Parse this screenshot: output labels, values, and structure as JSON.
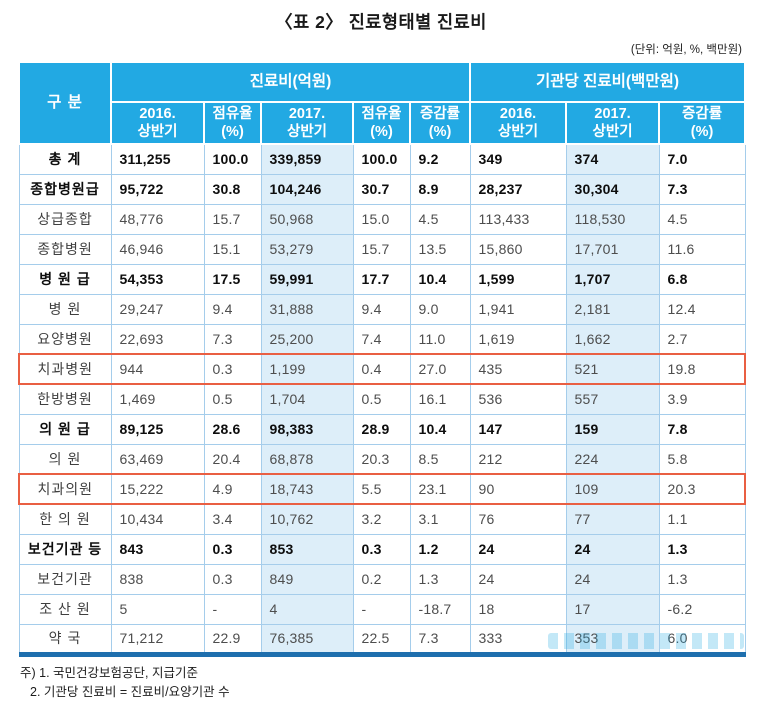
{
  "title": "〈표 2〉 진료형태별 진료비",
  "units_note": "(단위: 억원, %, 백만원)",
  "colors": {
    "header_blue": "#22a9e3",
    "column_highlight": "#ddeef9",
    "row_border": "#a5cdeb",
    "bottom_bar": "#1e6fae",
    "highlight_box_red": "#e95f43"
  },
  "table": {
    "corner_header": "구 분",
    "group_headers": [
      {
        "label": "진료비(억원)",
        "colspan": 5
      },
      {
        "label": "기관당 진료비(백만원)",
        "colspan": 3
      }
    ],
    "sub_headers": [
      "2016.\n상반기",
      "점유율\n(%)",
      "2017.\n상반기",
      "점유율\n(%)",
      "증감률\n(%)",
      "2016.\n상반기",
      "2017.\n상반기",
      "증감률\n(%)"
    ],
    "highlighted_value_columns": [
      2,
      6
    ],
    "rows": [
      {
        "label": "총 계",
        "values": [
          "311,255",
          "100.0",
          "339,859",
          "100.0",
          "9.2",
          "349",
          "374",
          "7.0"
        ],
        "bold": true,
        "sep": "solid",
        "boxed": false
      },
      {
        "label": "종합병원급",
        "values": [
          "95,722",
          "30.8",
          "104,246",
          "30.7",
          "8.9",
          "28,237",
          "30,304",
          "7.3"
        ],
        "bold": true,
        "sep": "solid",
        "boxed": false
      },
      {
        "label": "상급종합",
        "values": [
          "48,776",
          "15.7",
          "50,968",
          "15.0",
          "4.5",
          "113,433",
          "118,530",
          "4.5"
        ],
        "bold": false,
        "sep": "solid",
        "boxed": false
      },
      {
        "label": "종합병원",
        "values": [
          "46,946",
          "15.1",
          "53,279",
          "15.7",
          "13.5",
          "15,860",
          "17,701",
          "11.6"
        ],
        "bold": false,
        "sep": "dotted",
        "boxed": false
      },
      {
        "label": "병 원 급",
        "values": [
          "54,353",
          "17.5",
          "59,991",
          "17.7",
          "10.4",
          "1,599",
          "1,707",
          "6.8"
        ],
        "bold": true,
        "sep": "solid",
        "boxed": false
      },
      {
        "label": "병 원",
        "values": [
          "29,247",
          "9.4",
          "31,888",
          "9.4",
          "9.0",
          "1,941",
          "2,181",
          "12.4"
        ],
        "bold": false,
        "sep": "solid",
        "boxed": false
      },
      {
        "label": "요양병원",
        "values": [
          "22,693",
          "7.3",
          "25,200",
          "7.4",
          "11.0",
          "1,619",
          "1,662",
          "2.7"
        ],
        "bold": false,
        "sep": "dotted",
        "boxed": false
      },
      {
        "label": "치과병원",
        "values": [
          "944",
          "0.3",
          "1,199",
          "0.4",
          "27.0",
          "435",
          "521",
          "19.8"
        ],
        "bold": false,
        "sep": "dotted",
        "boxed": true
      },
      {
        "label": "한방병원",
        "values": [
          "1,469",
          "0.5",
          "1,704",
          "0.5",
          "16.1",
          "536",
          "557",
          "3.9"
        ],
        "bold": false,
        "sep": "dotted",
        "boxed": false
      },
      {
        "label": "의 원 급",
        "values": [
          "89,125",
          "28.6",
          "98,383",
          "28.9",
          "10.4",
          "147",
          "159",
          "7.8"
        ],
        "bold": true,
        "sep": "solid",
        "boxed": false
      },
      {
        "label": "의 원",
        "values": [
          "63,469",
          "20.4",
          "68,878",
          "20.3",
          "8.5",
          "212",
          "224",
          "5.8"
        ],
        "bold": false,
        "sep": "solid",
        "boxed": false
      },
      {
        "label": "치과의원",
        "values": [
          "15,222",
          "4.9",
          "18,743",
          "5.5",
          "23.1",
          "90",
          "109",
          "20.3"
        ],
        "bold": false,
        "sep": "dotted",
        "boxed": true
      },
      {
        "label": "한 의 원",
        "values": [
          "10,434",
          "3.4",
          "10,762",
          "3.2",
          "3.1",
          "76",
          "77",
          "1.1"
        ],
        "bold": false,
        "sep": "dotted",
        "boxed": false
      },
      {
        "label": "보건기관 등",
        "values": [
          "843",
          "0.3",
          "853",
          "0.3",
          "1.2",
          "24",
          "24",
          "1.3"
        ],
        "bold": true,
        "sep": "solid",
        "boxed": false
      },
      {
        "label": "보건기관",
        "values": [
          "838",
          "0.3",
          "849",
          "0.2",
          "1.3",
          "24",
          "24",
          "1.3"
        ],
        "bold": false,
        "sep": "solid",
        "boxed": false
      },
      {
        "label": "조 산 원",
        "values": [
          "5",
          "-",
          "4",
          "-",
          "-18.7",
          "18",
          "17",
          "-6.2"
        ],
        "bold": false,
        "sep": "dotted",
        "boxed": false
      },
      {
        "label": "약 국",
        "values": [
          "71,212",
          "22.9",
          "76,385",
          "22.5",
          "7.3",
          "333",
          "353",
          "6.0"
        ],
        "bold": false,
        "sep": "dotted",
        "boxed": false
      }
    ]
  },
  "footnotes": [
    "주) 1. 국민건강보험공단, 지급기준",
    "2. 기관당 진료비 = 진료비/요양기관 수"
  ]
}
